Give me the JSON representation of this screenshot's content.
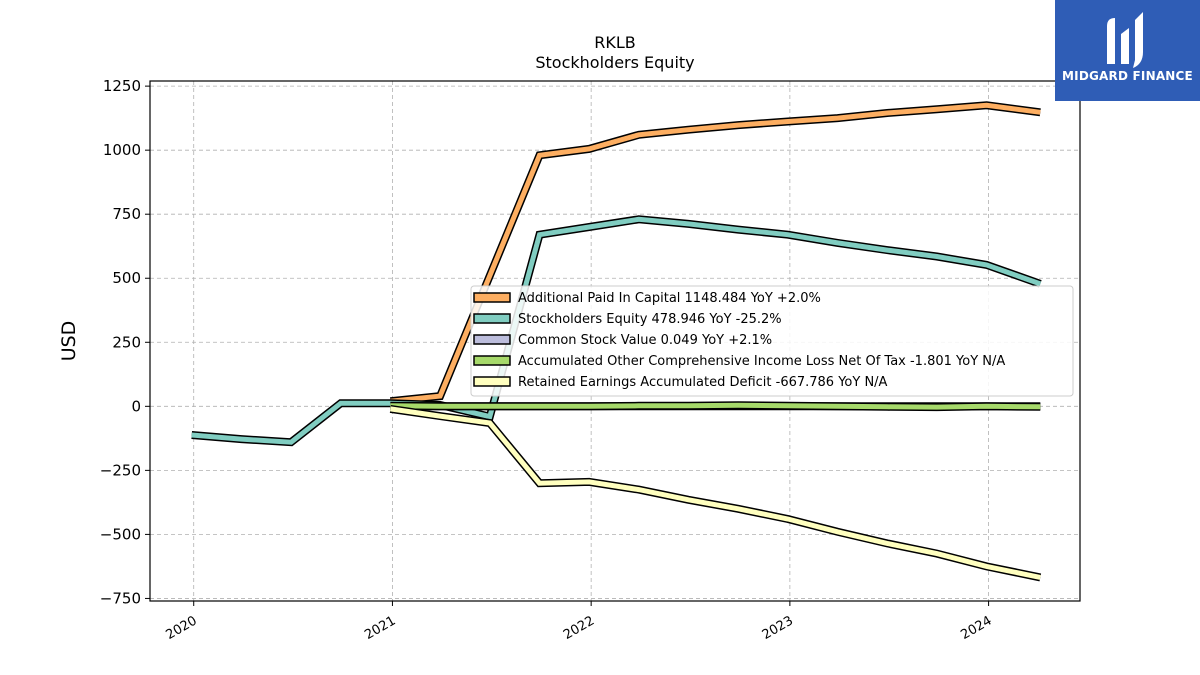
{
  "chart_data": {
    "type": "line",
    "title": "RKLB",
    "subtitle": "Stockholders  Equity",
    "ylabel": "USD",
    "xlabel": "",
    "ylim": [
      -760,
      1270
    ],
    "xlim": [
      2019.78,
      2024.46
    ],
    "yticks": [
      -750,
      -500,
      -250,
      0,
      250,
      500,
      750,
      1000,
      1250
    ],
    "ytick_labels": [
      "−750",
      "−500",
      "−250",
      "0",
      "250",
      "500",
      "750",
      "1000",
      "1250"
    ],
    "xticks": [
      2020,
      2021,
      2022,
      2023,
      2024
    ],
    "xtick_labels": [
      "2020",
      "2021",
      "2022",
      "2023",
      "2024"
    ],
    "grid": true,
    "legend_position": "center-right",
    "series": [
      {
        "name": "Additional Paid In Capital",
        "legend": "Additional Paid In Capital  1148.484 YoY +2.0%",
        "color": "#fdae61",
        "x": [
          2020.99,
          2021.24,
          2021.74,
          2021.99,
          2022.24,
          2022.49,
          2022.74,
          2022.99,
          2023.24,
          2023.49,
          2023.74,
          2023.99,
          2024.26
        ],
        "y": [
          20,
          40,
          980,
          1005,
          1060,
          1080,
          1098,
          1112,
          1125,
          1145,
          1160,
          1175,
          1148
        ]
      },
      {
        "name": "Stockholders Equity",
        "legend": "Stockholders Equity  478.946 YoY -25.2%",
        "color": "#80cdc1",
        "x": [
          2019.99,
          2020.24,
          2020.49,
          2020.74,
          2020.99,
          2021.24,
          2021.49,
          2021.74,
          2021.99,
          2022.24,
          2022.49,
          2022.74,
          2022.99,
          2023.24,
          2023.49,
          2023.74,
          2023.99,
          2024.26
        ],
        "y": [
          -112,
          -128,
          -140,
          12,
          12,
          5,
          -40,
          670,
          700,
          730,
          712,
          690,
          670,
          638,
          610,
          585,
          552,
          478
        ]
      },
      {
        "name": "Common Stock Value",
        "legend": "Common Stock Value  0.049 YoY +2.1%",
        "color": "#bcbddc",
        "x": [
          2020.99,
          2021.24,
          2021.49,
          2021.74,
          2021.99,
          2022.24,
          2022.49,
          2022.74,
          2022.99,
          2023.24,
          2023.49,
          2023.74,
          2023.99,
          2024.26
        ],
        "y": [
          0.04,
          0.04,
          0.04,
          0.05,
          0.05,
          0.05,
          0.05,
          0.05,
          0.05,
          0.05,
          0.05,
          0.05,
          0.05,
          0.049
        ]
      },
      {
        "name": "Accumulated Other Comprehensive Income Loss Net Of Tax",
        "legend": "Accumulated Other Comprehensive Income Loss Net Of Tax  -1.801 YoY N/A",
        "color": "#a6d96a",
        "x": [
          2020.99,
          2021.24,
          2021.49,
          2021.74,
          2021.99,
          2022.24,
          2022.49,
          2022.74,
          2022.99,
          2023.24,
          2023.49,
          2023.74,
          2023.99,
          2024.26
        ],
        "y": [
          2,
          0,
          0,
          0,
          0,
          2,
          2,
          4,
          2,
          0,
          -2,
          -3,
          0,
          -1.8
        ]
      },
      {
        "name": "Retained Earnings Accumulated Deficit",
        "legend": "Retained Earnings Accumulated Deficit  -667.786 YoY N/A",
        "color": "#ffffbf",
        "x": [
          2020.99,
          2021.24,
          2021.49,
          2021.74,
          2021.99,
          2022.24,
          2022.49,
          2022.74,
          2022.99,
          2023.24,
          2023.49,
          2023.74,
          2023.99,
          2024.26
        ],
        "y": [
          -10,
          -38,
          -65,
          -300,
          -295,
          -325,
          -365,
          -400,
          -440,
          -490,
          -535,
          -575,
          -625,
          -668
        ]
      }
    ]
  },
  "logo": {
    "text": "MIDGARD FINANCE",
    "background": "#2f5db6"
  }
}
